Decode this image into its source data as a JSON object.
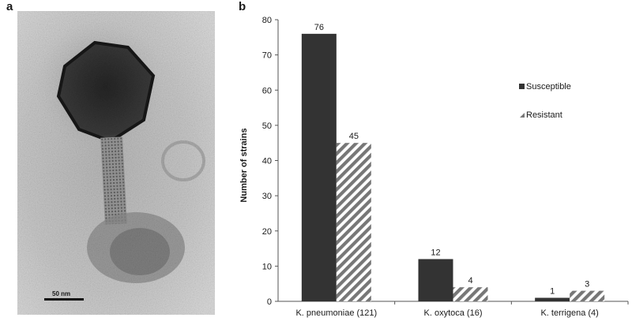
{
  "panels": {
    "a": "a",
    "b": "b"
  },
  "micrograph": {
    "scale_bar_label": "50 nm"
  },
  "chart_data": {
    "type": "bar",
    "categories": [
      "K. pneumoniae (121)",
      "K. oxytoca (16)",
      "K. terrigena (4)"
    ],
    "series": [
      {
        "name": "Susceptible",
        "values": [
          76,
          12,
          1
        ],
        "color": "#333333",
        "pattern": "solid"
      },
      {
        "name": "Resistant",
        "values": [
          45,
          4,
          3
        ],
        "color": "#777777",
        "pattern": "diagonal-hatch"
      }
    ],
    "ylabel": "Number of strains",
    "xlabel": "",
    "ylim": [
      0,
      80
    ],
    "yticks": [
      0,
      10,
      20,
      30,
      40,
      50,
      60,
      70,
      80
    ],
    "data_labels": true,
    "grid": false,
    "legend_position": "right"
  }
}
